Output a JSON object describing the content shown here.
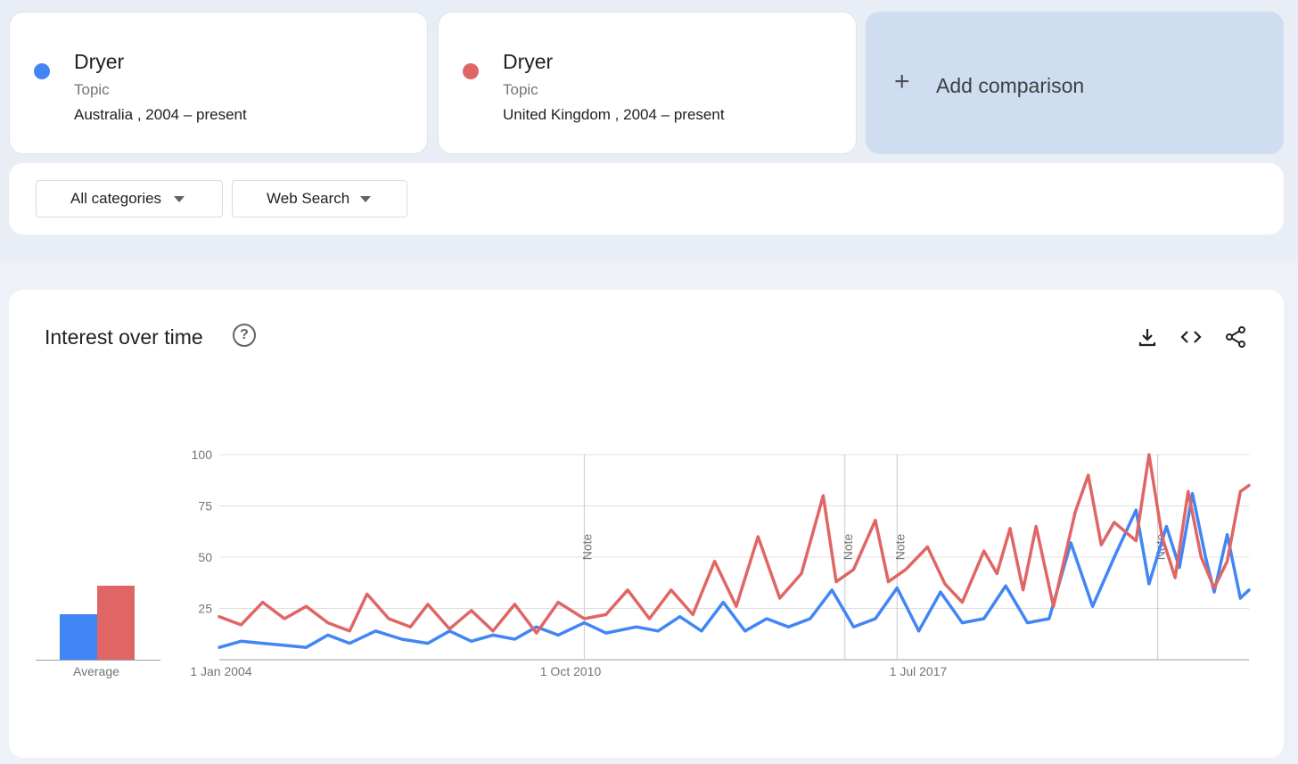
{
  "terms": [
    {
      "name": "Dryer",
      "type": "Topic",
      "region": "Australia",
      "range": "2004 – present",
      "scope": "Australia , 2004 – present",
      "color": "#4285f4"
    },
    {
      "name": "Dryer",
      "type": "Topic",
      "region": "United Kingdom",
      "range": "2004 – present",
      "scope": "United Kingdom , 2004 – present",
      "color": "#e06666"
    }
  ],
  "add_comparison": {
    "icon": "plus-icon",
    "label": "Add comparison"
  },
  "filters": {
    "category": "All categories",
    "search_type": "Web Search"
  },
  "interest": {
    "title": "Interest over time",
    "help_icon": "help-icon",
    "tools": [
      "download-icon",
      "embed-code-icon",
      "share-icon"
    ],
    "average_label": "Average",
    "averages": [
      22,
      36
    ],
    "note_label": "Note"
  },
  "chart_data": {
    "type": "line",
    "y_ticks": [
      25,
      50,
      75,
      100
    ],
    "ylim": [
      0,
      100
    ],
    "x_ticks": [
      "1 Jan 2004",
      "1 Oct 2010",
      "1 Jul 2017"
    ],
    "xlim": [
      "2004-01",
      "2023-10"
    ],
    "notes_at": [
      "2011-01",
      "2016-01",
      "2017-01",
      "2022-01"
    ],
    "series": [
      {
        "name": "Australia",
        "color": "#4285f4",
        "points": [
          [
            "2004-01",
            6
          ],
          [
            "2004-06",
            9
          ],
          [
            "2004-11",
            8
          ],
          [
            "2005-04",
            7
          ],
          [
            "2005-09",
            6
          ],
          [
            "2006-02",
            12
          ],
          [
            "2006-07",
            8
          ],
          [
            "2007-01",
            14
          ],
          [
            "2007-07",
            10
          ],
          [
            "2008-01",
            8
          ],
          [
            "2008-06",
            14
          ],
          [
            "2008-11",
            9
          ],
          [
            "2009-04",
            12
          ],
          [
            "2009-09",
            10
          ],
          [
            "2010-02",
            16
          ],
          [
            "2010-07",
            12
          ],
          [
            "2011-01",
            18
          ],
          [
            "2011-06",
            13
          ],
          [
            "2012-01",
            16
          ],
          [
            "2012-06",
            14
          ],
          [
            "2012-11",
            21
          ],
          [
            "2013-04",
            14
          ],
          [
            "2013-09",
            28
          ],
          [
            "2014-02",
            14
          ],
          [
            "2014-07",
            20
          ],
          [
            "2014-12",
            16
          ],
          [
            "2015-05",
            20
          ],
          [
            "2015-10",
            34
          ],
          [
            "2016-03",
            16
          ],
          [
            "2016-08",
            20
          ],
          [
            "2017-01",
            35
          ],
          [
            "2017-06",
            14
          ],
          [
            "2017-11",
            33
          ],
          [
            "2018-04",
            18
          ],
          [
            "2018-09",
            20
          ],
          [
            "2019-02",
            36
          ],
          [
            "2019-07",
            18
          ],
          [
            "2019-12",
            20
          ],
          [
            "2020-05",
            57
          ],
          [
            "2020-10",
            26
          ],
          [
            "2021-03",
            50
          ],
          [
            "2021-08",
            73
          ],
          [
            "2021-11",
            37
          ],
          [
            "2022-03",
            65
          ],
          [
            "2022-06",
            45
          ],
          [
            "2022-09",
            81
          ],
          [
            "2022-12",
            50
          ],
          [
            "2023-02",
            33
          ],
          [
            "2023-05",
            61
          ],
          [
            "2023-08",
            30
          ],
          [
            "2023-10",
            34
          ]
        ]
      },
      {
        "name": "United Kingdom",
        "color": "#e06666",
        "points": [
          [
            "2004-01",
            21
          ],
          [
            "2004-06",
            17
          ],
          [
            "2004-11",
            28
          ],
          [
            "2005-04",
            20
          ],
          [
            "2005-09",
            26
          ],
          [
            "2006-02",
            18
          ],
          [
            "2006-07",
            14
          ],
          [
            "2006-11",
            32
          ],
          [
            "2007-04",
            20
          ],
          [
            "2007-09",
            16
          ],
          [
            "2008-01",
            27
          ],
          [
            "2008-06",
            15
          ],
          [
            "2008-11",
            24
          ],
          [
            "2009-04",
            14
          ],
          [
            "2009-09",
            27
          ],
          [
            "2010-02",
            13
          ],
          [
            "2010-07",
            28
          ],
          [
            "2011-01",
            20
          ],
          [
            "2011-06",
            22
          ],
          [
            "2011-11",
            34
          ],
          [
            "2012-04",
            20
          ],
          [
            "2012-09",
            34
          ],
          [
            "2013-02",
            22
          ],
          [
            "2013-07",
            48
          ],
          [
            "2013-12",
            26
          ],
          [
            "2014-05",
            60
          ],
          [
            "2014-10",
            30
          ],
          [
            "2015-03",
            42
          ],
          [
            "2015-08",
            80
          ],
          [
            "2015-11",
            38
          ],
          [
            "2016-03",
            44
          ],
          [
            "2016-08",
            68
          ],
          [
            "2016-11",
            38
          ],
          [
            "2017-03",
            44
          ],
          [
            "2017-08",
            55
          ],
          [
            "2017-12",
            37
          ],
          [
            "2018-04",
            28
          ],
          [
            "2018-09",
            53
          ],
          [
            "2018-12",
            42
          ],
          [
            "2019-03",
            64
          ],
          [
            "2019-06",
            34
          ],
          [
            "2019-09",
            65
          ],
          [
            "2020-01",
            26
          ],
          [
            "2020-06",
            72
          ],
          [
            "2020-09",
            90
          ],
          [
            "2020-12",
            56
          ],
          [
            "2021-03",
            67
          ],
          [
            "2021-08",
            58
          ],
          [
            "2021-11",
            100
          ],
          [
            "2022-02",
            60
          ],
          [
            "2022-05",
            40
          ],
          [
            "2022-08",
            82
          ],
          [
            "2022-11",
            50
          ],
          [
            "2023-02",
            35
          ],
          [
            "2023-05",
            48
          ],
          [
            "2023-08",
            82
          ],
          [
            "2023-10",
            85
          ]
        ]
      }
    ]
  }
}
